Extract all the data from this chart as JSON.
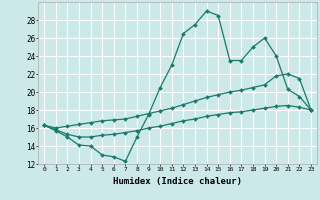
{
  "xlabel": "Humidex (Indice chaleur)",
  "bg_color": "#cce8e8",
  "grid_color": "#ffffff",
  "line_color": "#1a7a6a",
  "xlim": [
    -0.5,
    23.5
  ],
  "ylim": [
    12,
    30
  ],
  "xticks": [
    0,
    1,
    2,
    3,
    4,
    5,
    6,
    7,
    8,
    9,
    10,
    11,
    12,
    13,
    14,
    15,
    16,
    17,
    18,
    19,
    20,
    21,
    22,
    23
  ],
  "yticks": [
    12,
    14,
    16,
    18,
    20,
    22,
    24,
    26,
    28
  ],
  "line1_x": [
    0,
    1,
    2,
    3,
    4,
    5,
    6,
    7,
    8,
    9,
    10,
    11,
    12,
    13,
    14,
    15,
    16,
    17,
    18,
    19,
    20,
    21,
    22,
    23
  ],
  "line1_y": [
    16.3,
    15.7,
    15.0,
    14.1,
    14.0,
    13.0,
    12.8,
    12.3,
    15.0,
    17.5,
    20.5,
    23.0,
    26.5,
    27.5,
    29.0,
    28.5,
    23.5,
    23.5,
    25.0,
    26.0,
    24.0,
    20.3,
    19.5,
    18.0
  ],
  "line2_x": [
    0,
    1,
    2,
    3,
    4,
    5,
    6,
    7,
    8,
    9,
    10,
    11,
    12,
    13,
    14,
    15,
    16,
    17,
    18,
    19,
    20,
    21,
    22,
    23
  ],
  "line2_y": [
    16.3,
    16.0,
    16.2,
    16.4,
    16.6,
    16.8,
    16.9,
    17.0,
    17.3,
    17.6,
    17.9,
    18.2,
    18.6,
    19.0,
    19.4,
    19.7,
    20.0,
    20.2,
    20.5,
    20.8,
    21.8,
    22.0,
    21.5,
    18.0
  ],
  "line3_x": [
    0,
    1,
    2,
    3,
    4,
    5,
    6,
    7,
    8,
    9,
    10,
    11,
    12,
    13,
    14,
    15,
    16,
    17,
    18,
    19,
    20,
    21,
    22,
    23
  ],
  "line3_y": [
    16.3,
    15.8,
    15.3,
    15.0,
    15.0,
    15.2,
    15.3,
    15.5,
    15.7,
    16.0,
    16.2,
    16.5,
    16.8,
    17.0,
    17.3,
    17.5,
    17.7,
    17.8,
    18.0,
    18.2,
    18.4,
    18.5,
    18.3,
    18.0
  ]
}
